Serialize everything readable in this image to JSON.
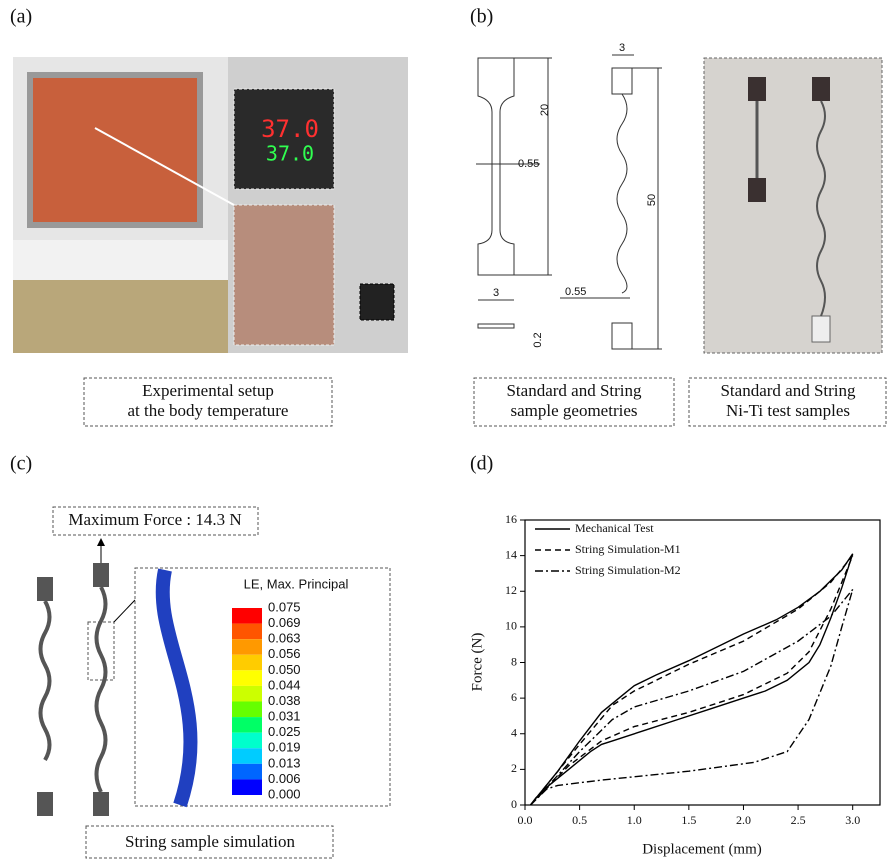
{
  "panels": {
    "a": {
      "label": "(a)",
      "display": [
        "37.0",
        "37.0"
      ],
      "caption": [
        "Experimental setup",
        "at the body temperature"
      ]
    },
    "b": {
      "label": "(b)",
      "dims": [
        "20",
        "0.55",
        "3",
        "0.2",
        "3",
        "50",
        "0.55"
      ],
      "caption1": [
        "Standard and String",
        "sample geometries"
      ],
      "caption2": [
        "Standard and String",
        "Ni-Ti test samples"
      ]
    },
    "c": {
      "label": "(c)",
      "annotation": "Maximum Force : 14.3 N",
      "legend_title": "LE, Max. Principal",
      "scale": [
        "0.075",
        "0.069",
        "0.063",
        "0.056",
        "0.050",
        "0.044",
        "0.038",
        "0.031",
        "0.025",
        "0.019",
        "0.013",
        "0.006",
        "0.000"
      ],
      "caption": "String sample simulation"
    },
    "d": {
      "label": "(d)"
    }
  },
  "chart_data": {
    "type": "line",
    "x_label": "Displacement (mm)",
    "y_label": "Force (N)",
    "xlim": [
      0,
      3.25
    ],
    "ylim": [
      0,
      16
    ],
    "xticks": [
      {
        "value": 0,
        "label": "0.0"
      },
      {
        "value": 0.5,
        "label": "0.5"
      },
      {
        "value": 1,
        "label": "1.0"
      },
      {
        "value": 1.5,
        "label": "1.5"
      },
      {
        "value": 2,
        "label": "2.0"
      },
      {
        "value": 2.5,
        "label": "2.5"
      },
      {
        "value": 3,
        "label": "3.0"
      }
    ],
    "yticks": [
      0,
      2,
      4,
      6,
      8,
      10,
      12,
      14,
      16
    ],
    "legend": "upper left",
    "series": [
      {
        "name": "Mechanical Test",
        "color": "#000000",
        "dash": "none",
        "x": [
          0.05,
          0.3,
          0.5,
          0.7,
          0.9,
          1.0,
          1.2,
          1.5,
          1.8,
          2.0,
          2.3,
          2.5,
          2.7,
          2.9,
          3.0,
          2.9,
          2.8,
          2.7,
          2.6,
          2.4,
          2.2,
          2.0,
          1.7,
          1.4,
          1.1,
          0.8,
          0.7,
          0.6,
          0.4,
          0.2,
          0.1,
          0.05
        ],
        "values": [
          0,
          1.9,
          3.6,
          5.2,
          6.2,
          6.7,
          7.3,
          8.1,
          9.0,
          9.6,
          10.4,
          11.1,
          12.0,
          13.2,
          14.1,
          12.2,
          10.5,
          9.0,
          8.0,
          7.0,
          6.4,
          6.0,
          5.4,
          4.8,
          4.2,
          3.6,
          3.4,
          3.0,
          2.0,
          1.0,
          0.4,
          0
        ]
      },
      {
        "name": "String Simulation-M1",
        "color": "#000000",
        "dash": "6 4",
        "x": [
          0.05,
          0.5,
          0.8,
          1.0,
          1.5,
          2.0,
          2.5,
          2.8,
          3.0,
          2.8,
          2.6,
          2.4,
          2.0,
          1.5,
          1.0,
          0.7,
          0.4,
          0.05
        ],
        "values": [
          0,
          3.4,
          5.6,
          6.4,
          7.9,
          9.2,
          11.0,
          12.5,
          14.0,
          11.0,
          8.6,
          7.4,
          6.2,
          5.2,
          4.4,
          3.6,
          2.2,
          0
        ]
      },
      {
        "name": "String Simulation-M2",
        "color": "#000000",
        "dash": "8 3 2 3",
        "x": [
          0.05,
          0.5,
          0.8,
          1.0,
          1.5,
          2.0,
          2.5,
          2.8,
          3.0,
          2.9,
          2.8,
          2.6,
          2.4,
          2.1,
          1.5,
          0.7,
          0.3,
          0.2,
          0.05
        ],
        "values": [
          0,
          3.0,
          4.8,
          5.5,
          6.4,
          7.5,
          9.2,
          10.6,
          12.1,
          10.0,
          7.8,
          4.8,
          3.0,
          2.4,
          1.9,
          1.4,
          1.1,
          0.9,
          0
        ]
      }
    ]
  }
}
